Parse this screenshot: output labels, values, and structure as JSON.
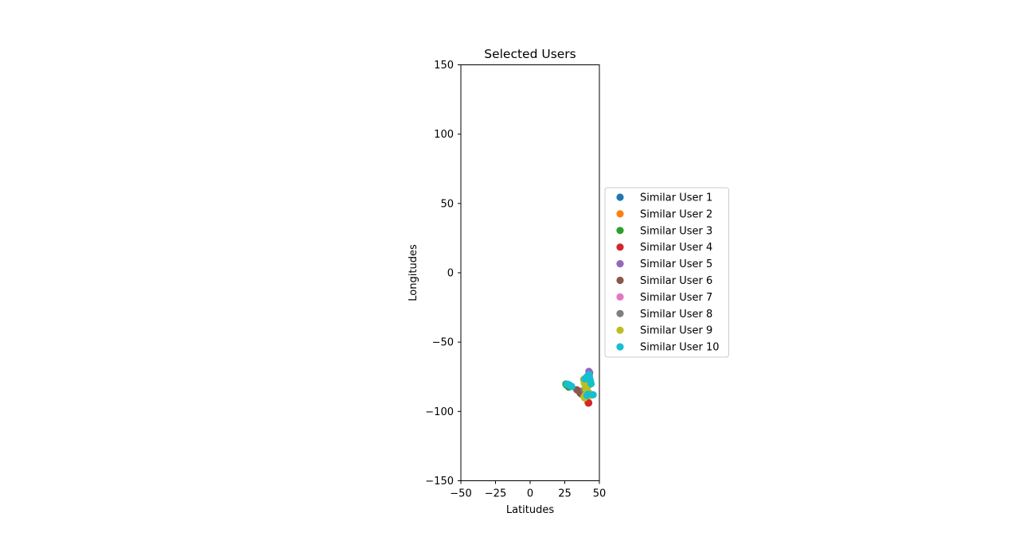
{
  "chart_data": {
    "type": "scatter",
    "title": "Selected Users",
    "xlabel": "Latitudes",
    "ylabel": "Longitudes",
    "xlim": [
      -50,
      50
    ],
    "ylim": [
      -150,
      150
    ],
    "xticks": [
      "−50",
      "−25",
      "0",
      "25",
      "50"
    ],
    "xtick_values": [
      -50,
      -25,
      0,
      25,
      50
    ],
    "yticks": [
      "150",
      "100",
      "50",
      "0",
      "−50",
      "−100",
      "−150"
    ],
    "ytick_values": [
      150,
      100,
      50,
      0,
      -50,
      -100,
      -150
    ],
    "grid": false,
    "legend_position": "center-left outside right",
    "series": [
      {
        "name": "Similar User 1",
        "color": "#1f77b4",
        "x": [
          41.8,
          42.0,
          41.5
        ],
        "y": [
          -87.7,
          -87.9,
          -87.6
        ]
      },
      {
        "name": "Similar User 2",
        "color": "#ff7f0e",
        "x": [
          40.7,
          41.2,
          40.9
        ],
        "y": [
          -80.0,
          -81.5,
          -82.9
        ]
      },
      {
        "name": "Similar User 3",
        "color": "#2ca02c",
        "x": [
          25.8,
          26.1,
          26.7,
          27.9
        ],
        "y": [
          -80.2,
          -80.8,
          -81.3,
          -82.5
        ]
      },
      {
        "name": "Similar User 4",
        "color": "#d62728",
        "x": [
          41.9,
          42.1,
          42.3,
          41.7
        ],
        "y": [
          -93.6,
          -94.0,
          -93.8,
          -88.2
        ]
      },
      {
        "name": "Similar User 5",
        "color": "#9467bd",
        "x": [
          42.4,
          43.0,
          42.7
        ],
        "y": [
          -71.1,
          -72.0,
          -73.8
        ]
      },
      {
        "name": "Similar User 6",
        "color": "#8c564b",
        "x": [
          33.7,
          35.2,
          36.1,
          37.0,
          38.5,
          39.8
        ],
        "y": [
          -84.4,
          -85.3,
          -86.8,
          -87.5,
          -85.7,
          -86.2
        ]
      },
      {
        "name": "Similar User 7",
        "color": "#e377c2",
        "x": [
          40.4,
          41.0
        ],
        "y": [
          -79.9,
          -81.7
        ]
      },
      {
        "name": "Similar User 8",
        "color": "#7f7f7f",
        "x": [
          39.0,
          40.1,
          39.6
        ],
        "y": [
          -84.5,
          -83.0,
          -86.0
        ]
      },
      {
        "name": "Similar User 9",
        "color": "#bcbd22",
        "x": [
          38.6,
          39.1,
          39.9,
          40.4,
          41.6,
          43.0,
          43.5,
          38.9,
          39.3,
          40.2,
          41.0,
          42.5
        ],
        "y": [
          -77.0,
          -79.5,
          -82.0,
          -84.0,
          -85.5,
          -87.0,
          -88.5,
          -89.5,
          -90.2,
          -87.8,
          -83.0,
          -81.0
        ]
      },
      {
        "name": "Similar User 10",
        "color": "#17becf",
        "x": [
          26.5,
          27.5,
          28.5,
          29.0,
          29.5,
          30.0,
          39.5,
          40.5,
          41.5,
          42.5,
          43.0,
          43.5,
          44.0,
          45.5,
          42.0,
          41.0
        ],
        "y": [
          -80.3,
          -80.5,
          -81.0,
          -81.5,
          -81.7,
          -82.0,
          -76.5,
          -75.5,
          -74.5,
          -73.5,
          -76.0,
          -78.0,
          -80.0,
          -88.0,
          -87.5,
          -88.5
        ]
      }
    ]
  }
}
